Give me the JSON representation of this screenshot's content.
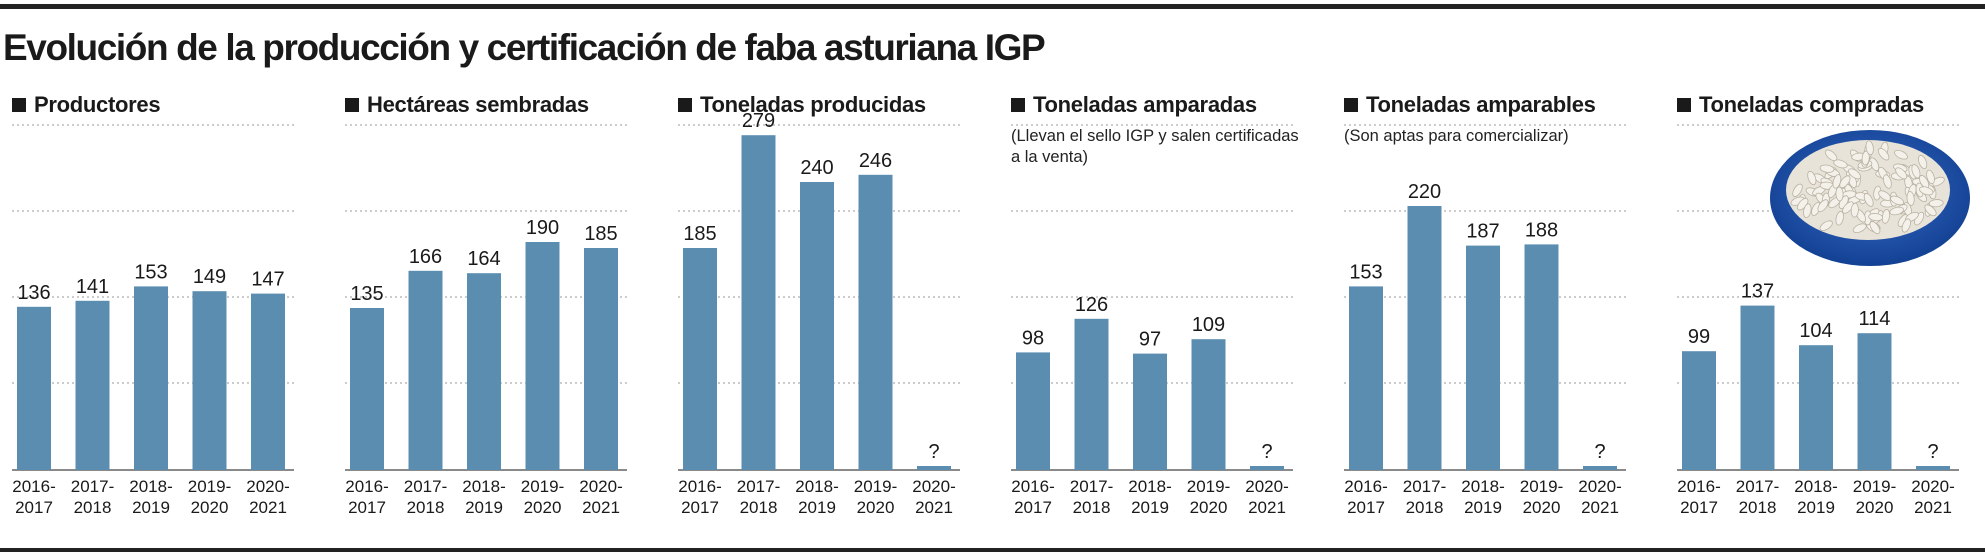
{
  "title": "Evolución de la producción y certificación de faba asturiana IGP",
  "colors": {
    "bar": "#5b8db0",
    "grid": "#9a9a9a",
    "text": "#1a1a1a",
    "rule": "#222222"
  },
  "image": {
    "name": "beans-bowl-photo"
  },
  "chart_data": [
    {
      "type": "bar",
      "title": "Productores",
      "subtitle": "",
      "categories": [
        "2016-2017",
        "2017-2018",
        "2018-2019",
        "2019-2020",
        "2020-2021"
      ],
      "values": [
        136,
        141,
        153,
        149,
        147
      ],
      "labels": [
        "136",
        "141",
        "153",
        "149",
        "147"
      ],
      "ylim": [
        0,
        290
      ],
      "grid": true
    },
    {
      "type": "bar",
      "title": "Hectáreas sembradas",
      "subtitle": "",
      "categories": [
        "2016-2017",
        "2017-2018",
        "2018-2019",
        "2019-2020",
        "2020-2021"
      ],
      "values": [
        135,
        166,
        164,
        190,
        185
      ],
      "labels": [
        "135",
        "166",
        "164",
        "190",
        "185"
      ],
      "ylim": [
        0,
        290
      ],
      "grid": true
    },
    {
      "type": "bar",
      "title": "Toneladas producidas",
      "subtitle": "",
      "categories": [
        "2016-2017",
        "2017-2018",
        "2018-2019",
        "2019-2020",
        "2020-2021"
      ],
      "values": [
        185,
        279,
        240,
        246,
        null
      ],
      "labels": [
        "185",
        "279",
        "240",
        "246",
        "?"
      ],
      "ylim": [
        0,
        290
      ],
      "grid": true
    },
    {
      "type": "bar",
      "title": "Toneladas amparadas",
      "subtitle": "(Llevan el sello IGP y salen certificadas a la venta)",
      "categories": [
        "2016-2017",
        "2017-2018",
        "2018-2019",
        "2019-2020",
        "2020-2021"
      ],
      "values": [
        98,
        126,
        97,
        109,
        null
      ],
      "labels": [
        "98",
        "126",
        "97",
        "109",
        "?"
      ],
      "ylim": [
        0,
        290
      ],
      "grid": true
    },
    {
      "type": "bar",
      "title": "Toneladas amparables",
      "subtitle": "(Son aptas para comercializar)",
      "categories": [
        "2016-2017",
        "2017-2018",
        "2018-2019",
        "2019-2020",
        "2020-2021"
      ],
      "values": [
        153,
        220,
        187,
        188,
        null
      ],
      "labels": [
        "153",
        "220",
        "187",
        "188",
        "?"
      ],
      "ylim": [
        0,
        290
      ],
      "grid": true
    },
    {
      "type": "bar",
      "title": "Toneladas compradas",
      "subtitle": "",
      "categories": [
        "2016-2017",
        "2017-2018",
        "2018-2019",
        "2019-2020",
        "2020-2021"
      ],
      "values": [
        99,
        137,
        104,
        114,
        null
      ],
      "labels": [
        "99",
        "137",
        "104",
        "114",
        "?"
      ],
      "ylim": [
        0,
        290
      ],
      "grid": true
    }
  ]
}
